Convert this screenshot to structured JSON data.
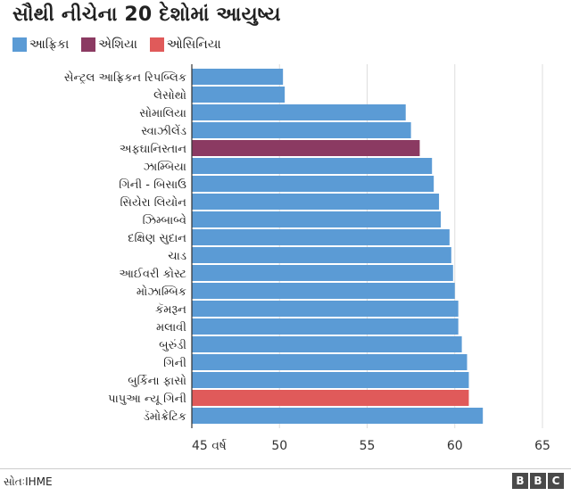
{
  "title": "સૌથી નીચેના 20 દેશોમાં આયુષ્ય",
  "legend": [
    {
      "label": "આફ્રિકા",
      "color": "#5b9bd5"
    },
    {
      "label": "એશિયા",
      "color": "#8b3a62"
    },
    {
      "label": "ઓસિનિયા",
      "color": "#e05a5a"
    }
  ],
  "source": "સોતઃIHME",
  "logo": [
    "B",
    "B",
    "C"
  ],
  "chart_data": {
    "type": "bar",
    "orientation": "horizontal",
    "categories": [
      "સેન્ટ્રલ આફ્રિકન રિપબ્લિક",
      "લેસોથો",
      "સોમાલિયા",
      "સ્વાઝીલેંડ",
      "અફઘાનિસ્તાન",
      "ઝામ્બિયા",
      "ગિની - બિસાઉ",
      "સિયેરા લિયોન",
      "ઝિમ્બાબ્વે",
      "દક્ષિણ સુદાન",
      "ચાડ",
      "આઈવરી કોસ્ટ",
      "મોઝામ્બિક",
      "કૅમરૂન",
      "મલાવી",
      "બુરુંડી",
      "ગિની",
      "બુર્કિના ફાસો",
      "પાપુઆ ન્યૂ ગિની",
      "ડૅમોક્રેટિક"
    ],
    "values": [
      50.2,
      50.3,
      57.2,
      57.5,
      58.0,
      58.7,
      58.8,
      59.1,
      59.2,
      59.7,
      59.8,
      59.9,
      60.0,
      60.2,
      60.2,
      60.4,
      60.7,
      60.8,
      60.8,
      61.6
    ],
    "regions": [
      "આફ્રિકા",
      "આફ્રિકા",
      "આફ્રિકા",
      "આફ્રિકા",
      "એશિયા",
      "આફ્રિકા",
      "આફ્રિકા",
      "આફ્રિકા",
      "આફ્રિકા",
      "આફ્રિકા",
      "આફ્રિકા",
      "આફ્રિકા",
      "આફ્રિકા",
      "આફ્રિકા",
      "આફ્રિકા",
      "આફ્રિકા",
      "આફ્રિકા",
      "આફ્રિકા",
      "ઓસિનિયા",
      "આફ્રિકા"
    ],
    "xlim": [
      45,
      65
    ],
    "ticks": [
      {
        "value": 45,
        "label": "45 વર્ષ"
      },
      {
        "value": 50,
        "label": "50"
      },
      {
        "value": 55,
        "label": "55"
      },
      {
        "value": 60,
        "label": "60"
      },
      {
        "value": 65,
        "label": "65"
      }
    ],
    "grid": true
  }
}
